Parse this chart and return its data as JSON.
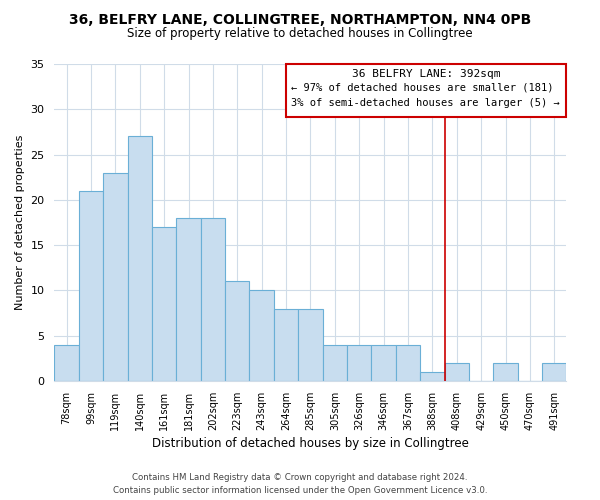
{
  "title_line1": "36, BELFRY LANE, COLLINGTREE, NORTHAMPTON, NN4 0PB",
  "title_line2": "Size of property relative to detached houses in Collingtree",
  "xlabel": "Distribution of detached houses by size in Collingtree",
  "ylabel": "Number of detached properties",
  "bar_labels": [
    "78sqm",
    "99sqm",
    "119sqm",
    "140sqm",
    "161sqm",
    "181sqm",
    "202sqm",
    "223sqm",
    "243sqm",
    "264sqm",
    "285sqm",
    "305sqm",
    "326sqm",
    "346sqm",
    "367sqm",
    "388sqm",
    "408sqm",
    "429sqm",
    "450sqm",
    "470sqm",
    "491sqm"
  ],
  "bar_values": [
    4,
    21,
    23,
    27,
    17,
    18,
    18,
    11,
    10,
    8,
    8,
    4,
    4,
    4,
    4,
    1,
    2,
    0,
    2,
    0,
    2
  ],
  "bar_color": "#c8ddef",
  "bar_edge_color": "#6aafd6",
  "vline_x": 15,
  "vline_color": "#cc0000",
  "annotation_title": "36 BELFRY LANE: 392sqm",
  "annotation_line1": "← 97% of detached houses are smaller (181)",
  "annotation_line2": "3% of semi-detached houses are larger (5) →",
  "annotation_box_color": "#cc0000",
  "ylim": [
    0,
    35
  ],
  "yticks": [
    0,
    5,
    10,
    15,
    20,
    25,
    30,
    35
  ],
  "footer_line1": "Contains HM Land Registry data © Crown copyright and database right 2024.",
  "footer_line2": "Contains public sector information licensed under the Open Government Licence v3.0.",
  "bg_color": "#ffffff",
  "grid_color": "#d0dce8"
}
